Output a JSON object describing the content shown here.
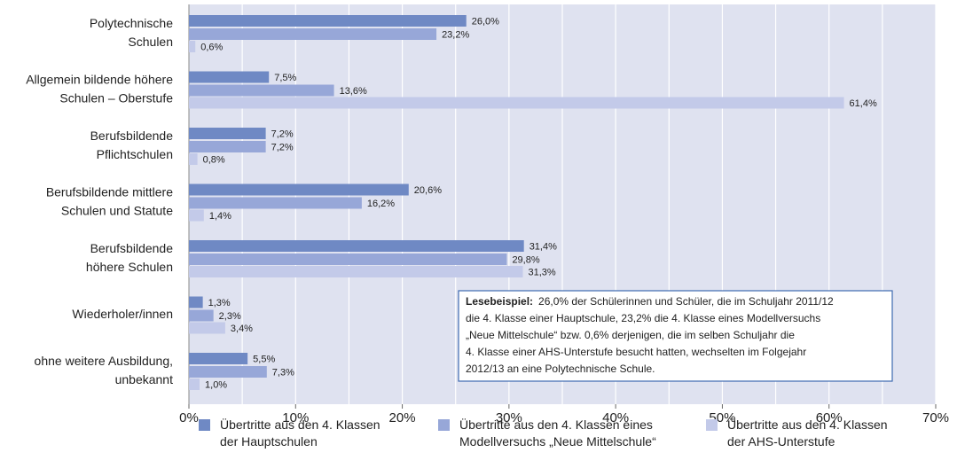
{
  "chart_data": {
    "type": "bar",
    "orientation": "horizontal",
    "categories": [
      [
        "Polytechnische",
        "Schulen"
      ],
      [
        "Allgemein bildende höhere",
        "Schulen – Oberstufe"
      ],
      [
        "Berufsbildende",
        "Pflichtschulen"
      ],
      [
        "Berufsbildende mittlere",
        "Schulen und Statute"
      ],
      [
        "Berufsbildende",
        "höhere Schulen"
      ],
      [
        "Wiederholer/innen"
      ],
      [
        "ohne weitere  Ausbildung,",
        "unbekannt"
      ]
    ],
    "series": [
      {
        "name": "Übertritte aus den 4. Klassen der Hauptschulen",
        "color": "#6f89c4",
        "values": [
          26.0,
          7.5,
          7.2,
          20.6,
          31.4,
          1.3,
          5.5
        ],
        "value_labels": [
          "26,0%",
          "7,5%",
          "7,2%",
          "20,6%",
          "31,4%",
          "1,3%",
          "5,5%"
        ]
      },
      {
        "name": "Übertritte aus den 4. Klassen eines Modellversuchs „Neue Mittelschule“",
        "color": "#97a7d8",
        "values": [
          23.2,
          13.6,
          7.2,
          16.2,
          29.8,
          2.3,
          7.3
        ],
        "value_labels": [
          "23,2%",
          "13,6%",
          "7,2%",
          "16,2%",
          "29,8%",
          "2,3%",
          "7,3%"
        ]
      },
      {
        "name": "Übertritte aus den 4. Klassen der AHS-Unterstufe",
        "color": "#c3cae9",
        "values": [
          0.6,
          61.4,
          0.8,
          1.4,
          31.3,
          3.4,
          1.0
        ],
        "value_labels": [
          "0,6%",
          "61,4%",
          "0,8%",
          "1,4%",
          "31,3%",
          "3,4%",
          "1,0%"
        ]
      }
    ],
    "xlim": [
      0,
      70
    ],
    "xticks": [
      {
        "value": 0,
        "label": "0%"
      },
      {
        "value": 10,
        "label": "10%"
      },
      {
        "value": 20,
        "label": "20%"
      },
      {
        "value": 30,
        "label": "30%"
      },
      {
        "value": 40,
        "label": "40%"
      },
      {
        "value": 50,
        "label": "50%"
      },
      {
        "value": 60,
        "label": "60%"
      },
      {
        "value": 70,
        "label": "70%"
      }
    ],
    "minor_xticks": [
      5,
      15,
      25,
      35,
      45,
      55,
      65
    ],
    "grid": true,
    "annotation": {
      "label": "Lesebeispiel:",
      "lines": [
        "26,0% der Schülerinnen und Schüler, die im Schuljahr 2011/12",
        "die 4. Klasse einer Hauptschule, 23,2% die 4. Klasse eines Modellversuchs",
        "„Neue Mittelschule“ bzw. 0,6% derjenigen, die im selben Schuljahr die",
        "4. Klasse einer AHS-Unterstufe besucht hatten, wechselten im Folgejahr",
        "2012/13 an eine Polytechnische Schule."
      ]
    }
  }
}
